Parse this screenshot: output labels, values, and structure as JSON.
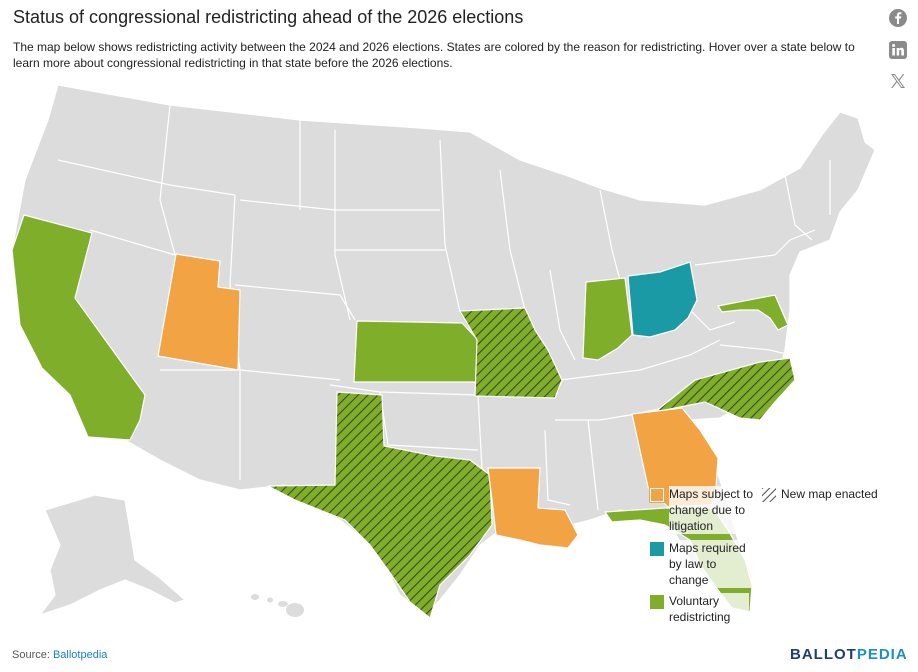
{
  "header": {
    "title": "Status of congressional redistricting ahead of the 2026 elections",
    "description": "The map below shows redistricting activity between the 2024 and 2026 elections. States are colored by the reason for redistricting. Hover over a state below to learn more about congressional redistricting in that state before the 2026 elections."
  },
  "share": {
    "icons": [
      "facebook-icon",
      "linkedin-icon",
      "x-icon"
    ]
  },
  "colors": {
    "default_state": "#dcdcdc",
    "litigation": "#f2a444",
    "required_by_law": "#1a9aa5",
    "voluntary": "#7fae2a",
    "hatch": "#3a4a22"
  },
  "legend": {
    "litigation": "Maps subject to change due to litigation",
    "required_by_law": "Maps required by law to change",
    "voluntary": "Voluntary redistricting",
    "new_map": "New map enacted"
  },
  "map_data": {
    "litigation": [
      "Utah",
      "Louisiana",
      "Georgia"
    ],
    "required_by_law": [
      "Ohio"
    ],
    "voluntary": [
      "California",
      "Kansas",
      "Indiana",
      "Maryland",
      "Florida"
    ],
    "new_map_enacted": [
      "Missouri",
      "Texas",
      "North Carolina"
    ]
  },
  "footer": {
    "source_label": "Source: ",
    "source_link": "Ballotpedia",
    "brand_part1": "BALLOT",
    "brand_part2": "PEDIA"
  }
}
